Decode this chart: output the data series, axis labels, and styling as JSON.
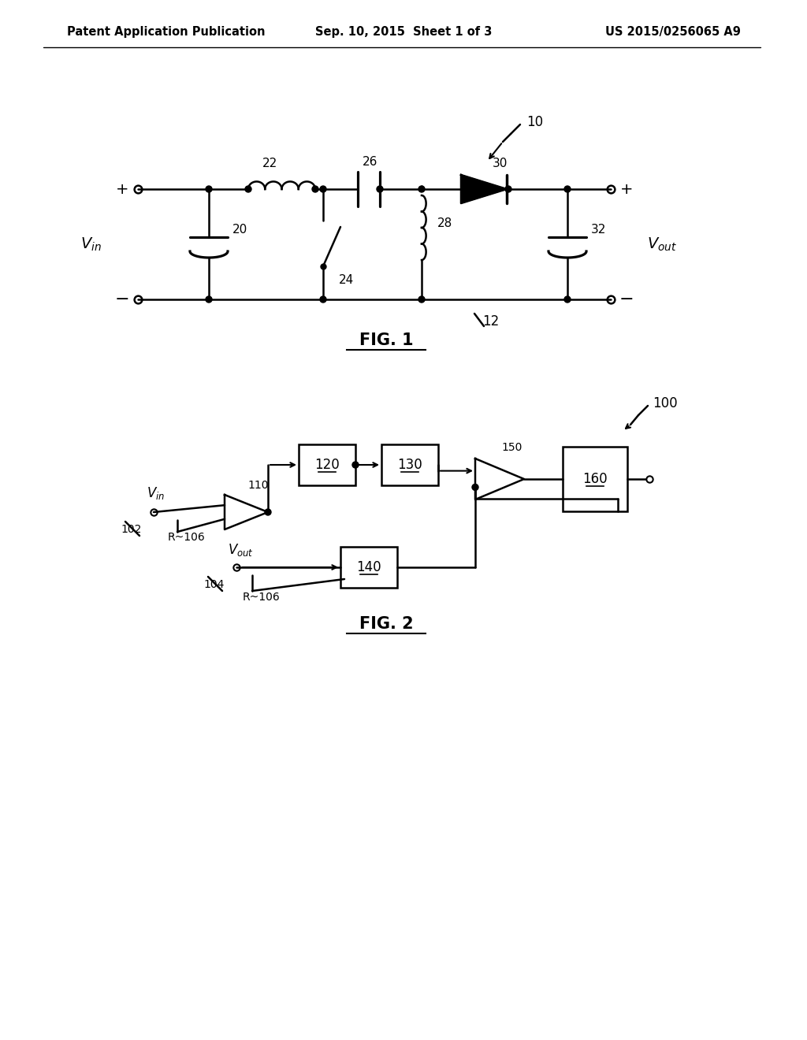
{
  "bg_color": "#ffffff",
  "header_left": "Patent Application Publication",
  "header_mid": "Sep. 10, 2015  Sheet 1 of 3",
  "header_right": "US 2015/0256065 A9",
  "fig1_label": "FIG. 1",
  "fig2_label": "FIG. 2",
  "lw": 1.8
}
